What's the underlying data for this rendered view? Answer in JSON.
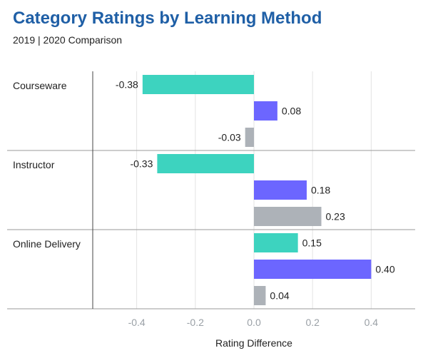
{
  "header": {
    "title": "Category Ratings by Learning Method",
    "subtitle": "2019 | 2020 Comparison"
  },
  "colors": {
    "title": "#1f5fa6",
    "series": [
      "#3dd3bf",
      "#6c66ff",
      "#adb2b8"
    ],
    "grid": "#e3e3e3",
    "axis": "#9a9a9a"
  },
  "chart_data": {
    "type": "bar",
    "orientation": "horizontal",
    "title": "Category Ratings by Learning Method",
    "subtitle": "2019 | 2020 Comparison",
    "categories": [
      "Courseware",
      "Instructor",
      "Online Delivery"
    ],
    "bar_values": [
      [
        -0.38,
        0.08,
        -0.03
      ],
      [
        -0.33,
        0.18,
        0.23
      ],
      [
        0.15,
        0.4,
        0.04
      ]
    ],
    "value_labels": [
      [
        "-0.38",
        "0.08",
        "-0.03"
      ],
      [
        "-0.33",
        "0.18",
        "0.23"
      ],
      [
        "0.15",
        "0.40",
        "0.04"
      ]
    ],
    "xlabel": "Rating Difference",
    "xlim": [
      -0.55,
      0.55
    ],
    "xticks": [
      -0.4,
      -0.2,
      0.0,
      0.2,
      0.4
    ],
    "xtick_labels": [
      "-0.4",
      "-0.2",
      "0.0",
      "0.2",
      "0.4"
    ],
    "grid": true
  }
}
